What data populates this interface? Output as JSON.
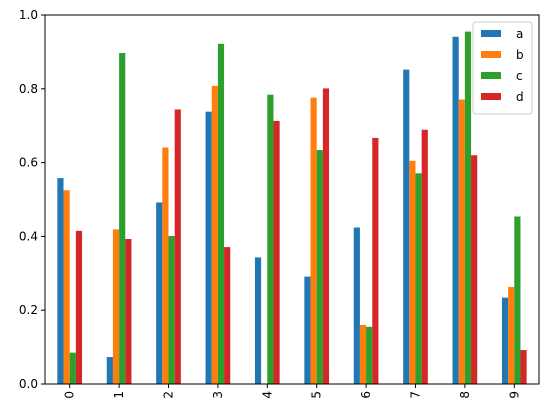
{
  "chart_data": {
    "type": "bar",
    "categories": [
      "0",
      "1",
      "2",
      "3",
      "4",
      "5",
      "6",
      "7",
      "8",
      "9"
    ],
    "series": [
      {
        "name": "a",
        "color": "#1f77b4",
        "values": [
          0.558,
          0.073,
          0.492,
          0.738,
          0.343,
          0.291,
          0.424,
          0.852,
          0.941,
          0.234
        ]
      },
      {
        "name": "b",
        "color": "#ff7f0e",
        "values": [
          0.525,
          0.419,
          0.641,
          0.808,
          0.0,
          0.776,
          0.16,
          0.605,
          0.771,
          0.263
        ]
      },
      {
        "name": "c",
        "color": "#2ca02c",
        "values": [
          0.085,
          0.897,
          0.401,
          0.922,
          0.784,
          0.634,
          0.155,
          0.571,
          0.955,
          0.454
        ]
      },
      {
        "name": "d",
        "color": "#d62728",
        "values": [
          0.415,
          0.393,
          0.744,
          0.371,
          0.713,
          0.801,
          0.667,
          0.689,
          0.62,
          0.092
        ]
      }
    ],
    "ylim": [
      0,
      1.0
    ],
    "yticks": [
      "0.0",
      "0.2",
      "0.4",
      "0.6",
      "0.8",
      "1.0"
    ],
    "legend_position": "top-right",
    "grid": false,
    "xlabel": "",
    "ylabel": "",
    "title": ""
  }
}
